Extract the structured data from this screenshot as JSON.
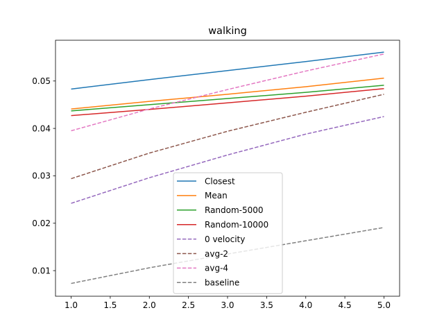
{
  "chart_data": {
    "type": "line",
    "title": "walking",
    "xlabel": "",
    "ylabel": "",
    "xlim": [
      0.8,
      5.2
    ],
    "ylim": [
      0.0046,
      0.0586
    ],
    "xticks": [
      1.0,
      1.5,
      2.0,
      2.5,
      3.0,
      3.5,
      4.0,
      4.5,
      5.0
    ],
    "xtick_labels": [
      "1.0",
      "1.5",
      "2.0",
      "2.5",
      "3.0",
      "3.5",
      "4.0",
      "4.5",
      "5.0"
    ],
    "yticks": [
      0.01,
      0.02,
      0.03,
      0.04,
      0.05
    ],
    "ytick_labels": [
      "0.01",
      "0.02",
      "0.03",
      "0.04",
      "0.05"
    ],
    "grid": false,
    "legend_position": "lower-center",
    "x": [
      1,
      2,
      3,
      4,
      5
    ],
    "series": [
      {
        "name": "Closest",
        "color": "#1f77b4",
        "style": "solid",
        "values": [
          0.0483,
          0.0503,
          0.0522,
          0.0541,
          0.0561
        ]
      },
      {
        "name": "Mean",
        "color": "#ff7f0e",
        "style": "solid",
        "values": [
          0.0441,
          0.0457,
          0.0472,
          0.0488,
          0.0506
        ]
      },
      {
        "name": "Random-5000",
        "color": "#2ca02c",
        "style": "solid",
        "values": [
          0.0437,
          0.045,
          0.0463,
          0.0476,
          0.0491
        ]
      },
      {
        "name": "Random-10000",
        "color": "#d62728",
        "style": "solid",
        "values": [
          0.0427,
          0.044,
          0.0454,
          0.0468,
          0.0484
        ]
      },
      {
        "name": "0 velocity",
        "color": "#9467bd",
        "style": "dashed",
        "values": [
          0.0242,
          0.0296,
          0.0344,
          0.0388,
          0.0425
        ]
      },
      {
        "name": "avg-2",
        "color": "#8c564b",
        "style": "dashed",
        "values": [
          0.0294,
          0.0348,
          0.0394,
          0.0434,
          0.0472
        ]
      },
      {
        "name": "avg-4",
        "color": "#e377c2",
        "style": "dashed",
        "values": [
          0.0395,
          0.0441,
          0.0482,
          0.0521,
          0.0557
        ]
      },
      {
        "name": "baseline",
        "color": "#7f7f7f",
        "style": "dashed",
        "values": [
          0.0073,
          0.0106,
          0.0135,
          0.0163,
          0.0191
        ]
      }
    ]
  }
}
